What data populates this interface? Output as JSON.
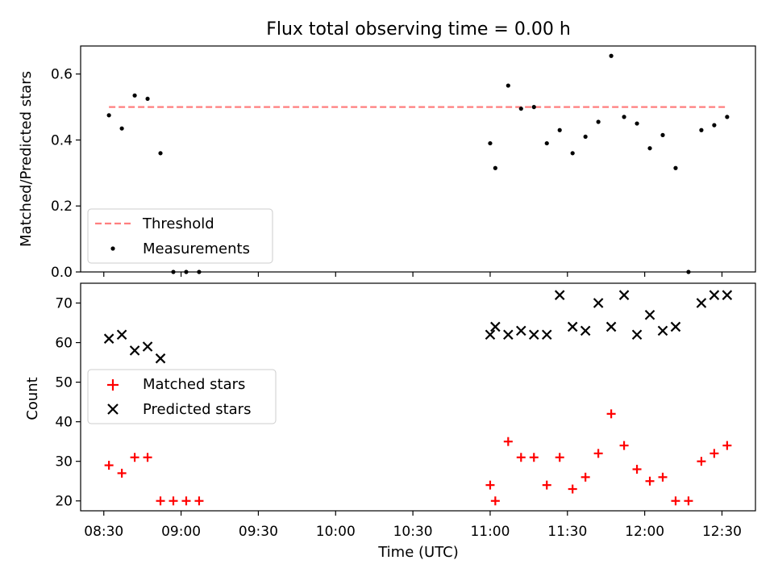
{
  "chart_data": {
    "type": "scatter",
    "title": "Flux total observing time = 0.00 h",
    "xlabel": "Time (UTC)",
    "xticks": [
      "08:30",
      "09:00",
      "09:30",
      "10:00",
      "10:30",
      "11:00",
      "11:30",
      "12:00",
      "12:30"
    ],
    "xlim": [
      "08:21",
      "12:43"
    ],
    "panels": [
      {
        "id": "ratio",
        "ylabel": "Matched/Predicted stars",
        "ylim": [
          0,
          0.685
        ],
        "yticks": [
          "0.0",
          "0.2",
          "0.4",
          "0.6"
        ],
        "legend_position": "lower-left",
        "series": [
          {
            "name": "Threshold",
            "kind": "dashed-line",
            "color": "#ff7f7f",
            "x": [
              "08:32",
              "12:32"
            ],
            "y": [
              0.5,
              0.5
            ]
          },
          {
            "name": "Measurements",
            "kind": "dot",
            "color": "#000000",
            "x": [
              "08:32",
              "08:37",
              "08:42",
              "08:47",
              "08:52",
              "08:57",
              "09:02",
              "09:07",
              "11:00",
              "11:02",
              "11:07",
              "11:12",
              "11:17",
              "11:22",
              "11:27",
              "11:32",
              "11:37",
              "11:42",
              "11:47",
              "11:52",
              "11:57",
              "12:02",
              "12:07",
              "12:12",
              "12:17",
              "12:22",
              "12:27",
              "12:32"
            ],
            "y": [
              0.475,
              0.435,
              0.535,
              0.525,
              0.36,
              0.0,
              0.0,
              0.0,
              0.39,
              0.315,
              0.565,
              0.495,
              0.5,
              0.39,
              0.43,
              0.36,
              0.41,
              0.455,
              0.655,
              0.47,
              0.45,
              0.375,
              0.415,
              0.315,
              0.0,
              0.43,
              0.445,
              0.47
            ]
          }
        ]
      },
      {
        "id": "count",
        "ylabel": "Count",
        "ylim": [
          17.5,
          75
        ],
        "yticks": [
          "20",
          "30",
          "40",
          "50",
          "60",
          "70"
        ],
        "legend_position": "center-left",
        "series": [
          {
            "name": "Matched stars",
            "kind": "plus",
            "color": "#ff0000",
            "x": [
              "08:32",
              "08:37",
              "08:42",
              "08:47",
              "08:52",
              "08:57",
              "09:02",
              "09:07",
              "11:00",
              "11:02",
              "11:07",
              "11:12",
              "11:17",
              "11:22",
              "11:27",
              "11:32",
              "11:37",
              "11:42",
              "11:47",
              "11:52",
              "11:57",
              "12:02",
              "12:07",
              "12:12",
              "12:17",
              "12:22",
              "12:27",
              "12:32"
            ],
            "y": [
              29,
              27,
              31,
              31,
              20,
              20,
              20,
              20,
              24,
              20,
              35,
              31,
              31,
              24,
              31,
              23,
              26,
              32,
              42,
              34,
              28,
              25,
              26,
              20,
              20,
              30,
              32,
              34
            ]
          },
          {
            "name": "Predicted stars",
            "kind": "cross",
            "color": "#000000",
            "x": [
              "08:32",
              "08:37",
              "08:42",
              "08:47",
              "08:52",
              "11:00",
              "11:02",
              "11:07",
              "11:12",
              "11:17",
              "11:22",
              "11:27",
              "11:32",
              "11:37",
              "11:42",
              "11:47",
              "11:52",
              "11:57",
              "12:02",
              "12:07",
              "12:12",
              "12:22",
              "12:27",
              "12:32"
            ],
            "y": [
              61,
              62,
              58,
              59,
              56,
              62,
              64,
              62,
              63,
              62,
              62,
              72,
              64,
              63,
              70,
              64,
              72,
              62,
              67,
              63,
              64,
              70,
              72,
              72
            ]
          }
        ]
      }
    ]
  }
}
